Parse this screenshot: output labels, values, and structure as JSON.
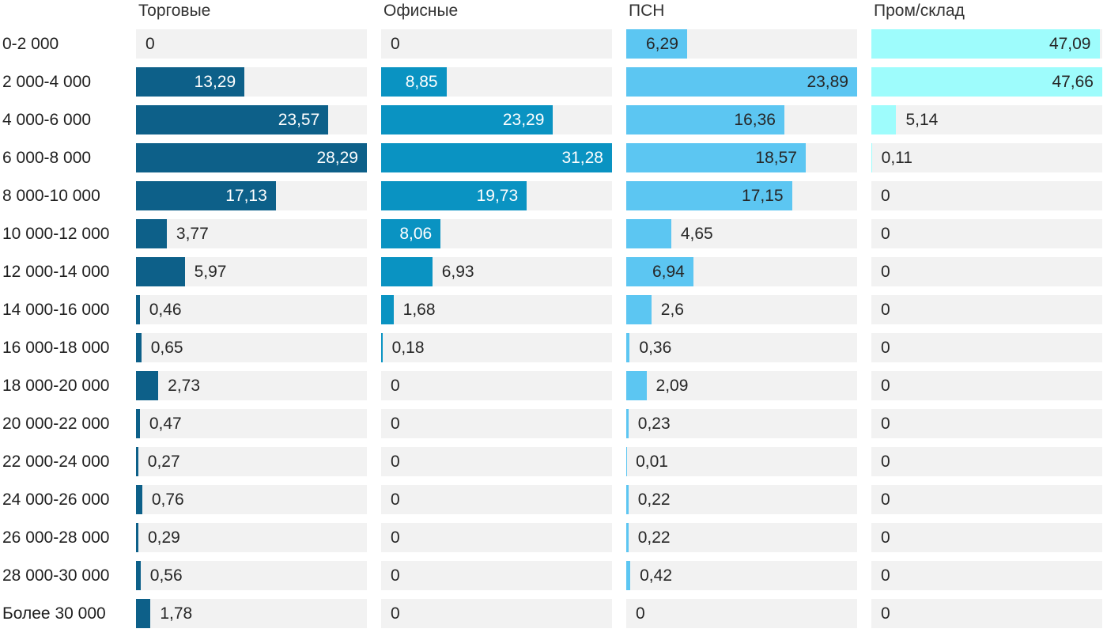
{
  "chart_data": {
    "type": "bar",
    "orientation": "horizontal",
    "layout": "small-multiples, 4 columns, one bar track per row, each column scaled to its own max value",
    "title": "",
    "xlabel": "",
    "ylabel": "",
    "grid": false,
    "legend_position": "column-headers-top",
    "value_format": "comma-decimal",
    "track_color": "#f2f2f2",
    "text_color": "#262626",
    "categories": [
      "0-2 000",
      "2 000-4 000",
      "4 000-6 000",
      "6 000-8 000",
      "8 000-10 000",
      "10 000-12 000",
      "12 000-14 000",
      "14 000-16 000",
      "16 000-18 000",
      "18 000-20 000",
      "20 000-22 000",
      "22 000-24 000",
      "24 000-26 000",
      "26 000-28 000",
      "28 000-30 000",
      "Более 30 000"
    ],
    "series": [
      {
        "name": "Торговые",
        "color": "#0d6089",
        "label_color_inside": "#ffffff",
        "xlim": [
          0,
          28.29
        ],
        "values": [
          0,
          13.29,
          23.57,
          28.29,
          17.13,
          3.77,
          5.97,
          0.46,
          0.65,
          2.73,
          0.47,
          0.27,
          0.76,
          0.29,
          0.56,
          1.78
        ]
      },
      {
        "name": "Офисные",
        "color": "#0a93c2",
        "label_color_inside": "#ffffff",
        "xlim": [
          0,
          31.28
        ],
        "values": [
          0,
          8.85,
          23.29,
          31.28,
          19.73,
          8.06,
          6.93,
          1.68,
          0.18,
          0,
          0,
          0,
          0,
          0,
          0,
          0
        ]
      },
      {
        "name": "ПСН",
        "color": "#5cc6f2",
        "label_color_inside": "#262626",
        "xlim": [
          0,
          23.89
        ],
        "values": [
          6.29,
          23.89,
          16.36,
          18.57,
          17.15,
          4.65,
          6.94,
          2.6,
          0.36,
          2.09,
          0.23,
          0.01,
          0.22,
          0.22,
          0.42,
          0
        ]
      },
      {
        "name": "Пром/склад",
        "color": "#9efcfc",
        "label_color_inside": "#262626",
        "xlim": [
          0,
          47.66
        ],
        "values": [
          47.09,
          47.66,
          5.14,
          0.11,
          0,
          0,
          0,
          0,
          0,
          0,
          0,
          0,
          0,
          0,
          0,
          0
        ]
      }
    ]
  }
}
